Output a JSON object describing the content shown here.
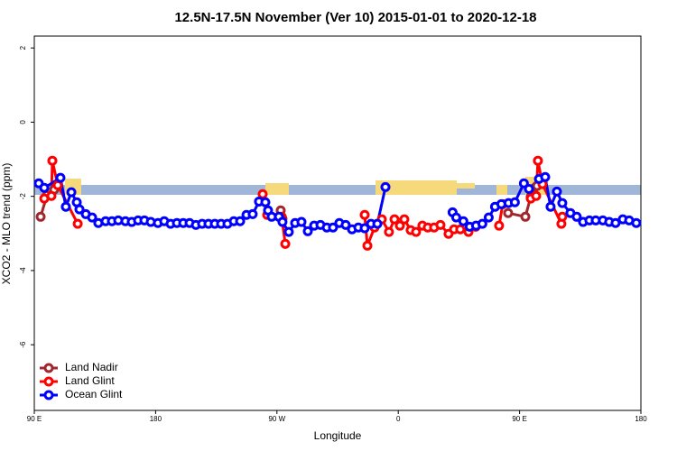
{
  "chart_data": {
    "type": "line",
    "title": "12.5N-17.5N November (Ver 10)   2015-01-01 to 2020-12-18",
    "x_label": "Longitude",
    "y_label": "XCO2 - MLO trend (ppm)",
    "xlim": [
      90,
      540
    ],
    "ylim": [
      -7.77,
      2.32
    ],
    "xticks": [
      {
        "value": 90,
        "label": "90 E"
      },
      {
        "value": 180,
        "label": "180"
      },
      {
        "value": 270,
        "label": "90 W"
      },
      {
        "value": 360,
        "label": "0"
      },
      {
        "value": 450,
        "label": "90 E"
      },
      {
        "value": 540,
        "label": "180"
      }
    ],
    "yticks": [
      2,
      0,
      -2,
      -4,
      -6
    ],
    "legend": "bottom-left",
    "series": [
      {
        "name": "Land Nadir",
        "color": "#a0282d",
        "x": [
          94.7,
          99.4,
          104.7,
          null,
          272.8,
          274.1,
          null,
          441.5,
          454.3,
          458.3,
          463
        ],
        "values": [
          -2.55,
          -1.97,
          -1.82,
          null,
          -2.38,
          -2.6,
          null,
          -2.45,
          -2.55,
          -2.01,
          -1.72
        ]
      },
      {
        "name": "Land Glint",
        "color": "#ff0000",
        "x": [
          97.4,
          102.7,
          103.4,
          107.4,
          122.2,
          null,
          259.4,
          262.8,
          273.5,
          276.2,
          null,
          335.1,
          337.1,
          342.4,
          347.8,
          353.1,
          357.2,
          361.2,
          364.5,
          369.2,
          373.2,
          377.9,
          381.9,
          386.6,
          391.3,
          397.3,
          401.4,
          406,
          412.1,
          417.4,
          null,
          434.8,
          437.5,
          null,
          458.3,
          462.3,
          463.6,
          467,
          481,
          481.7
        ],
        "values": [
          -2.06,
          -1.99,
          -1.04,
          -1.7,
          -2.74,
          null,
          -1.94,
          -2.5,
          -2.55,
          -3.28,
          null,
          -2.5,
          -3.33,
          -2.84,
          -2.62,
          -2.96,
          -2.62,
          -2.79,
          -2.62,
          -2.91,
          -2.96,
          -2.79,
          -2.84,
          -2.84,
          -2.77,
          -3.01,
          -2.89,
          -2.89,
          -2.96,
          -2.82,
          null,
          -2.79,
          -2.21,
          null,
          -2.06,
          -1.99,
          -1.04,
          -1.67,
          -2.74,
          -2.55
        ]
      },
      {
        "name": "Ocean Glint",
        "color": "#0000ff",
        "x": [
          93.3,
          97.4,
          109.4,
          113.4,
          117.5,
          121.5,
          123.5,
          128.2,
          132.9,
          137.5,
          142.9,
          147.6,
          152.3,
          157.6,
          162.3,
          167,
          171.7,
          176.4,
          181.7,
          186.4,
          191.1,
          195.8,
          200.5,
          205.2,
          209.9,
          214.5,
          219.2,
          223.9,
          228.6,
          233.3,
          238,
          242.7,
          247.4,
          252,
          256.7,
          261.4,
          263.4,
          266.1,
          271.5,
          274.1,
          278.8,
          283.5,
          288.2,
          292.9,
          297.6,
          302.3,
          307,
          311.6,
          316.3,
          321,
          325.7,
          330.4,
          335.1,
          339.8,
          344.5,
          350.5,
          null,
          400.3,
          403,
          408.3,
          413,
          417.7,
          422.4,
          427.1,
          431.8,
          436.5,
          441.8,
          446.5,
          453.2,
          457,
          464.4,
          469,
          473,
          477.7,
          481.7,
          487.7,
          492.4,
          497.1,
          501.8,
          506.5,
          511.8,
          516.5,
          521.2,
          526.6,
          531.3,
          536.6
        ],
        "values": [
          -1.65,
          -1.77,
          -1.5,
          -2.28,
          -1.89,
          -2.16,
          -2.35,
          -2.48,
          -2.57,
          -2.72,
          -2.67,
          -2.67,
          -2.65,
          -2.67,
          -2.69,
          -2.65,
          -2.65,
          -2.69,
          -2.72,
          -2.67,
          -2.74,
          -2.72,
          -2.72,
          -2.72,
          -2.77,
          -2.74,
          -2.74,
          -2.74,
          -2.74,
          -2.74,
          -2.67,
          -2.67,
          -2.5,
          -2.48,
          -2.14,
          -2.16,
          -2.38,
          -2.55,
          -2.55,
          -2.69,
          -2.96,
          -2.72,
          -2.69,
          -2.94,
          -2.79,
          -2.77,
          -2.84,
          -2.84,
          -2.72,
          -2.77,
          -2.89,
          -2.84,
          -2.86,
          -2.74,
          -2.74,
          -1.75,
          null,
          -2.43,
          -2.57,
          -2.67,
          -2.82,
          -2.79,
          -2.74,
          -2.57,
          -2.28,
          -2.21,
          -2.18,
          -2.16,
          -1.65,
          -1.8,
          -1.53,
          -1.48,
          -2.28,
          -1.87,
          -2.18,
          -2.45,
          -2.55,
          -2.69,
          -2.65,
          -2.65,
          -2.65,
          -2.69,
          -2.72,
          -2.62,
          -2.65,
          -2.72
        ]
      }
    ]
  }
}
